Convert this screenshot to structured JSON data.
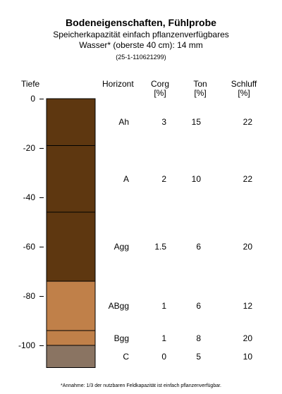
{
  "title": "Bodeneigenschaften, Fühlprobe",
  "subtitle_line1": "Speicherkapazität einfach pflanzenverfügbares",
  "subtitle_line2": "Wasser* (oberste 40 cm): 14 mm",
  "code": "(25-1-110621299)",
  "columns": {
    "depth": "Tiefe",
    "horizon": "Horizont",
    "corg": "Corg",
    "corg_unit": "[%]",
    "ton": "Ton",
    "ton_unit": "[%]",
    "schluff": "Schluff",
    "schluff_unit": "[%]"
  },
  "footnote": "*Annahme: 1/3 der nutzbaren Feldkapazität ist einfach pflanzenverfügbar.",
  "chart_data": {
    "type": "table",
    "depth_axis": {
      "ticks": [
        0,
        -20,
        -40,
        -60,
        -80,
        -100
      ],
      "tick_labels": [
        "0",
        "-20",
        "-40",
        "-60",
        "-80",
        "-100"
      ],
      "range": [
        0,
        -109
      ]
    },
    "layers": [
      {
        "horizon": "Ah",
        "top": 0,
        "bottom": -19,
        "corg": "3",
        "ton": "15",
        "schluff": "22",
        "color": "#5e3710"
      },
      {
        "horizon": "A",
        "top": -19,
        "bottom": -46,
        "corg": "2",
        "ton": "10",
        "schluff": "22",
        "color": "#5e3710"
      },
      {
        "horizon": "Agg",
        "top": -46,
        "bottom": -74,
        "corg": "1.5",
        "ton": "6",
        "schluff": "20",
        "color": "#5e3710"
      },
      {
        "horizon": "ABgg",
        "top": -74,
        "bottom": -94,
        "corg": "1",
        "ton": "6",
        "schluff": "12",
        "color": "#c08049"
      },
      {
        "horizon": "Bgg",
        "top": -94,
        "bottom": -100,
        "corg": "1",
        "ton": "8",
        "schluff": "20",
        "color": "#c08049"
      },
      {
        "horizon": "C",
        "top": -100,
        "bottom": -109,
        "corg": "0",
        "ton": "5",
        "schluff": "10",
        "color": "#8a7462"
      }
    ]
  }
}
